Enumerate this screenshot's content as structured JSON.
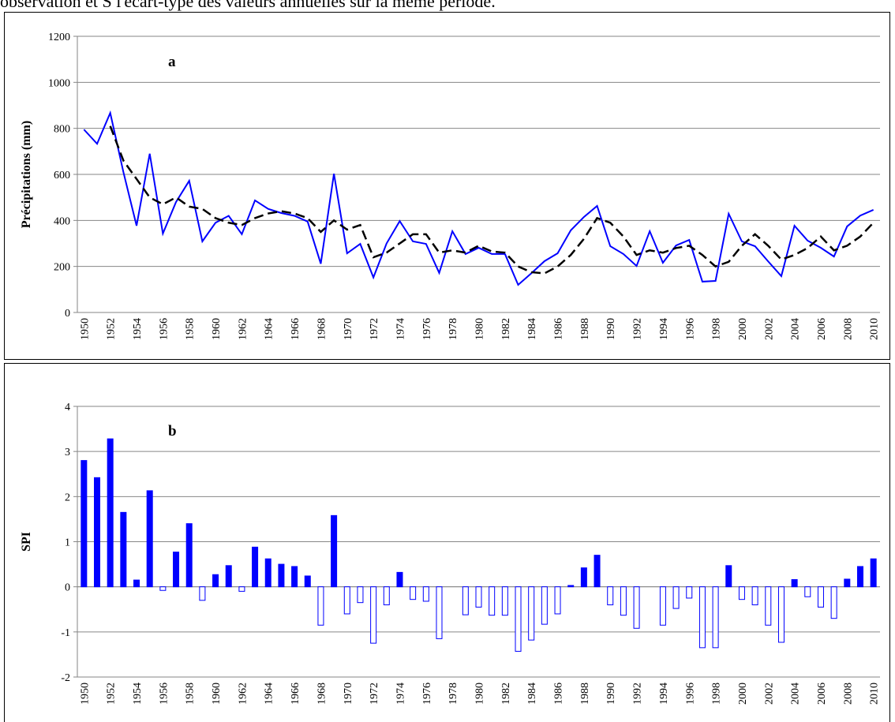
{
  "caption": "observation et S l'écart-type des valeurs annuelles sur la même période.",
  "chart_data": [
    {
      "type": "line",
      "annotation": "a",
      "y_label": "Précipitations (mm)",
      "categories": [
        "1950",
        null,
        "1952",
        null,
        "1954",
        null,
        "1956",
        null,
        "1958",
        null,
        "1960",
        null,
        "1962",
        null,
        "1964",
        null,
        "1966",
        null,
        "1968",
        null,
        "1970",
        null,
        "1972",
        null,
        "1974",
        null,
        "1976",
        null,
        "1978",
        null,
        "1980",
        null,
        "1982",
        null,
        "1984",
        null,
        "1986",
        null,
        "1988",
        null,
        "1990",
        null,
        "1992",
        null,
        "1994",
        null,
        "1996",
        null,
        "1998",
        null,
        "2000",
        null,
        "2002",
        null,
        "2004",
        null,
        "2006",
        null,
        "2008",
        null,
        "2010"
      ],
      "series": [
        {
          "color": "#0000ff",
          "dash": "solid",
          "values": [
            795,
            733,
            867,
            610,
            377,
            690,
            343,
            480,
            572,
            309,
            390,
            420,
            340,
            487,
            450,
            432,
            420,
            395,
            212,
            603,
            257,
            298,
            152,
            300,
            397,
            309,
            298,
            172,
            353,
            254,
            281,
            254,
            254,
            120,
            170,
            223,
            257,
            357,
            415,
            463,
            288,
            254,
            202,
            353,
            216,
            291,
            315,
            134,
            137,
            429,
            309,
            288,
            222,
            158,
            377,
            312,
            281,
            243,
            374,
            421,
            446
          ]
        },
        {
          "color": "#000000",
          "dash": "dashed",
          "values": [
            null,
            null,
            810,
            660,
            580,
            500,
            470,
            500,
            460,
            450,
            410,
            390,
            380,
            410,
            430,
            440,
            430,
            410,
            350,
            400,
            360,
            380,
            240,
            260,
            300,
            340,
            340,
            260,
            270,
            260,
            290,
            265,
            260,
            200,
            175,
            170,
            200,
            250,
            320,
            410,
            390,
            330,
            250,
            270,
            260,
            280,
            290,
            250,
            200,
            220,
            290,
            340,
            290,
            230,
            250,
            280,
            330,
            270,
            290,
            330,
            390
          ]
        }
      ],
      "ylim": [
        0,
        1200
      ],
      "yticks": [
        0,
        200,
        400,
        600,
        800,
        1000,
        1200
      ],
      "grid": true
    },
    {
      "type": "bar",
      "annotation": "b",
      "y_label": "SPI",
      "categories": [
        "1950",
        null,
        "1952",
        null,
        "1954",
        null,
        "1956",
        null,
        "1958",
        null,
        "1960",
        null,
        "1962",
        null,
        "1964",
        null,
        "1966",
        null,
        "1968",
        null,
        "1970",
        null,
        "1972",
        null,
        "1974",
        null,
        "1976",
        null,
        "1978",
        null,
        "1980",
        null,
        "1982",
        null,
        "1984",
        null,
        "1986",
        null,
        "1988",
        null,
        "1990",
        null,
        "1992",
        null,
        "1994",
        null,
        "1996",
        null,
        "1998",
        null,
        "2000",
        null,
        "2002",
        null,
        "2004",
        null,
        "2006",
        null,
        "2008",
        null,
        "2010"
      ],
      "series": [
        {
          "color": "#0000ff",
          "negative_color": "#ffffff",
          "values": [
            2.8,
            2.42,
            3.28,
            1.65,
            0.15,
            2.13,
            -0.08,
            0.77,
            1.4,
            -0.3,
            0.27,
            0.47,
            -0.1,
            0.88,
            0.62,
            0.5,
            0.45,
            0.24,
            -0.85,
            1.58,
            -0.6,
            -0.35,
            -1.25,
            -0.4,
            0.32,
            -0.28,
            -0.32,
            -1.15,
            0,
            -0.62,
            -0.45,
            -0.63,
            -0.63,
            -1.43,
            -1.18,
            -0.83,
            -0.6,
            0.03,
            0.42,
            0.7,
            -0.4,
            -0.63,
            -0.92,
            0,
            -0.85,
            -0.48,
            -0.25,
            -1.35,
            -1.35,
            0.47,
            -0.28,
            -0.4,
            -0.85,
            -1.23,
            0.16,
            -0.22,
            -0.45,
            -0.7,
            0.17,
            0.45,
            0.62
          ]
        }
      ],
      "ylim": [
        -2,
        4
      ],
      "yticks": [
        -2,
        -1,
        0,
        1,
        2,
        3,
        4
      ],
      "grid": true
    }
  ]
}
